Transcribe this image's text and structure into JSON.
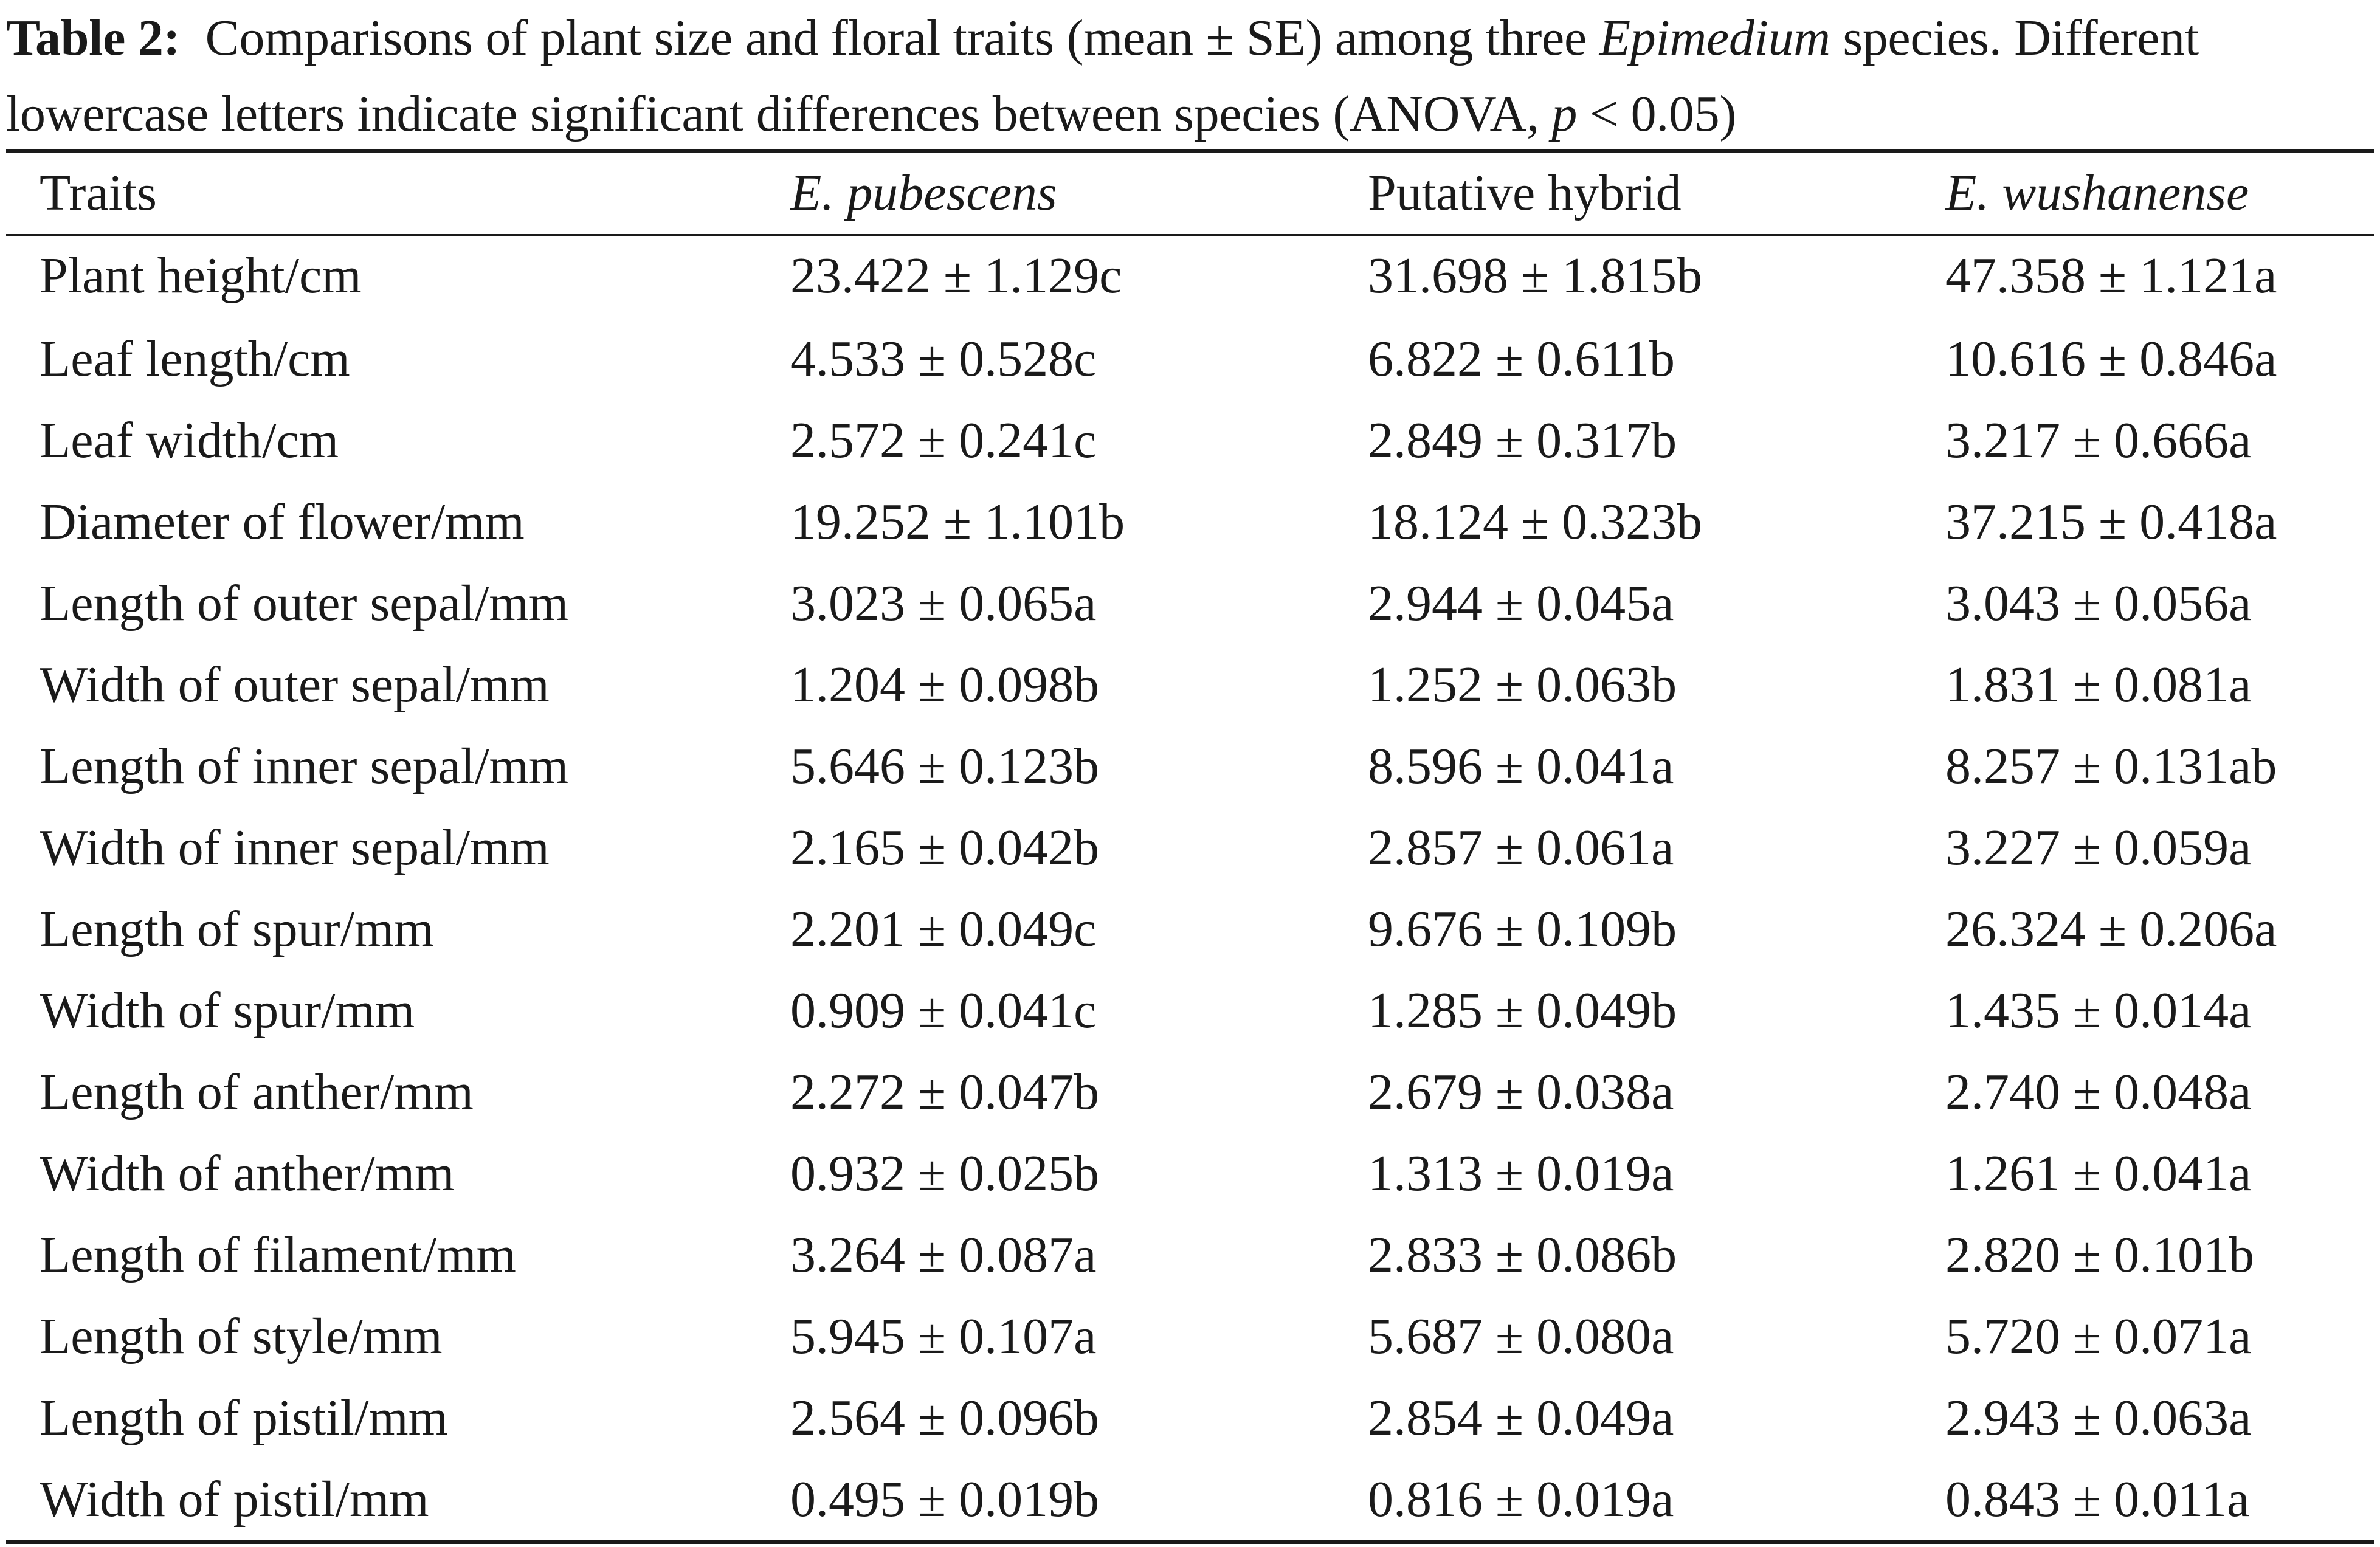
{
  "caption": {
    "label": "Table 2:",
    "text_part1": "Comparisons of plant size and floral traits (mean ± SE) among three",
    "text_italic_genus": "Epimedium",
    "text_part2": "species. Different lowercase letters indicate significant differences between species (ANOVA,",
    "text_italic_p": "p",
    "text_part3": "< 0.05)"
  },
  "table": {
    "headers": [
      "Traits",
      "E. pubescens",
      "Putative hybrid",
      "E. wushanense"
    ],
    "rows": [
      [
        "Plant height/cm",
        "23.422 ± 1.129c",
        "31.698 ± 1.815b",
        "47.358 ± 1.121a"
      ],
      [
        "Leaf length/cm",
        "4.533 ± 0.528c",
        "6.822 ± 0.611b",
        "10.616 ± 0.846a"
      ],
      [
        "Leaf width/cm",
        "2.572 ± 0.241c",
        "2.849 ± 0.317b",
        "3.217 ± 0.666a"
      ],
      [
        "Diameter of flower/mm",
        "19.252 ± 1.101b",
        "18.124 ± 0.323b",
        "37.215 ± 0.418a"
      ],
      [
        "Length of outer sepal/mm",
        "3.023 ± 0.065a",
        "2.944 ± 0.045a",
        "3.043 ± 0.056a"
      ],
      [
        "Width of outer sepal/mm",
        "1.204 ± 0.098b",
        "1.252 ± 0.063b",
        "1.831 ± 0.081a"
      ],
      [
        "Length of inner sepal/mm",
        "5.646 ± 0.123b",
        "8.596 ± 0.041a",
        "8.257 ± 0.131ab"
      ],
      [
        "Width of inner sepal/mm",
        "2.165 ± 0.042b",
        "2.857 ± 0.061a",
        "3.227 ± 0.059a"
      ],
      [
        "Length of spur/mm",
        "2.201 ± 0.049c",
        "9.676 ± 0.109b",
        "26.324 ± 0.206a"
      ],
      [
        "Width of spur/mm",
        "0.909 ± 0.041c",
        "1.285 ± 0.049b",
        "1.435 ± 0.014a"
      ],
      [
        "Length of anther/mm",
        "2.272 ± 0.047b",
        "2.679 ± 0.038a",
        "2.740 ± 0.048a"
      ],
      [
        "Width of anther/mm",
        "0.932 ± 0.025b",
        "1.313 ± 0.019a",
        "1.261 ± 0.041a"
      ],
      [
        "Length of filament/mm",
        "3.264 ± 0.087a",
        "2.833 ± 0.086b",
        "2.820 ± 0.101b"
      ],
      [
        "Length of style/mm",
        "5.945 ± 0.107a",
        "5.687 ± 0.080a",
        "5.720 ± 0.071a"
      ],
      [
        "Length of pistil/mm",
        "2.564 ± 0.096b",
        "2.854 ± 0.049a",
        "2.943 ± 0.063a"
      ],
      [
        "Width of pistil/mm",
        "0.495 ± 0.019b",
        "0.816 ± 0.019a",
        "0.843 ± 0.011a"
      ]
    ]
  }
}
